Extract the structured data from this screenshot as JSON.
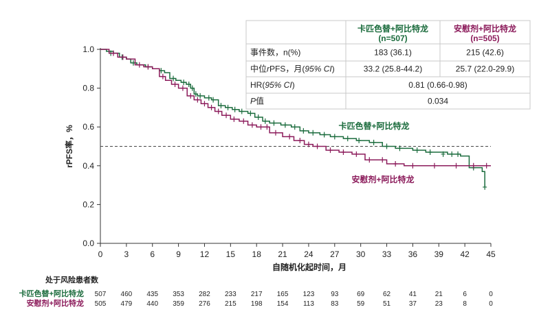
{
  "chart_data": {
    "type": "line",
    "subtype": "kaplan-meier",
    "xlabel": "自随机化起时间，月",
    "ylabel": "rPFS率，%",
    "xlim": [
      0,
      45
    ],
    "ylim": [
      0.0,
      1.0
    ],
    "xticks": [
      "0",
      "3",
      "6",
      "9",
      "12",
      "15",
      "18",
      "21",
      "24",
      "27",
      "30",
      "33",
      "36",
      "39",
      "42",
      "45"
    ],
    "yticks": [
      "0.0",
      "0.2",
      "0.4",
      "0.6",
      "0.8",
      "1.0"
    ],
    "reference_line": 0.5,
    "series": [
      {
        "name": "卡匹色替+阿比特龙",
        "label": "卡匹色替+阿比特龙",
        "color": "#1a6b3c",
        "x": [
          0,
          0.7,
          1.5,
          2.2,
          3.0,
          3.5,
          4.2,
          5.2,
          6.0,
          6.8,
          7.4,
          8.0,
          8.7,
          9.3,
          9.9,
          10.4,
          10.8,
          11.2,
          12.0,
          12.8,
          13.6,
          14.4,
          15.2,
          16.0,
          17.0,
          17.8,
          18.7,
          19.5,
          20.8,
          22.0,
          23.0,
          24.0,
          25.3,
          26.5,
          28.0,
          29.5,
          31.0,
          32.5,
          34.0,
          36.0,
          37.5,
          40.0,
          41.5,
          42.5,
          44.0,
          44.3
        ],
        "y": [
          1.0,
          0.99,
          0.98,
          0.96,
          0.95,
          0.93,
          0.92,
          0.91,
          0.9,
          0.89,
          0.88,
          0.85,
          0.84,
          0.83,
          0.82,
          0.8,
          0.77,
          0.76,
          0.75,
          0.74,
          0.71,
          0.7,
          0.69,
          0.68,
          0.67,
          0.65,
          0.63,
          0.62,
          0.61,
          0.6,
          0.58,
          0.57,
          0.56,
          0.55,
          0.54,
          0.53,
          0.52,
          0.5,
          0.49,
          0.48,
          0.47,
          0.46,
          0.45,
          0.39,
          0.37,
          0.29
        ]
      },
      {
        "name": "安慰剂+阿比特龙",
        "label": "安慰剂+阿比特龙",
        "color": "#8b1a5a",
        "x": [
          0,
          1.0,
          2.0,
          3.0,
          4.0,
          5.0,
          6.0,
          6.8,
          7.5,
          8.2,
          9.0,
          10.0,
          10.8,
          11.6,
          12.4,
          13.2,
          14.0,
          15.0,
          16.0,
          17.0,
          18.0,
          19.5,
          21.0,
          22.3,
          23.5,
          24.5,
          26.0,
          27.5,
          29.0,
          30.5,
          33.0,
          35.0,
          37.0,
          40.0,
          44.0,
          45.0
        ],
        "y": [
          1.0,
          0.98,
          0.96,
          0.95,
          0.92,
          0.91,
          0.9,
          0.86,
          0.84,
          0.82,
          0.8,
          0.76,
          0.74,
          0.72,
          0.7,
          0.68,
          0.66,
          0.64,
          0.63,
          0.61,
          0.6,
          0.57,
          0.55,
          0.53,
          0.51,
          0.5,
          0.48,
          0.47,
          0.46,
          0.43,
          0.41,
          0.4,
          0.4,
          0.4,
          0.4,
          0.4
        ]
      }
    ],
    "censor_marks": {
      "卡匹色替+阿比特龙": [
        [
          1.2,
          0.98
        ],
        [
          2.5,
          0.96
        ],
        [
          3.8,
          0.93
        ],
        [
          5.5,
          0.91
        ],
        [
          7.0,
          0.89
        ],
        [
          8.4,
          0.85
        ],
        [
          9.6,
          0.83
        ],
        [
          10.2,
          0.82
        ],
        [
          10.6,
          0.8
        ],
        [
          11.0,
          0.77
        ],
        [
          11.5,
          0.76
        ],
        [
          12.5,
          0.75
        ],
        [
          13.0,
          0.74
        ],
        [
          13.9,
          0.71
        ],
        [
          14.7,
          0.7
        ],
        [
          15.5,
          0.69
        ],
        [
          16.3,
          0.68
        ],
        [
          17.3,
          0.67
        ],
        [
          18.2,
          0.65
        ],
        [
          19.0,
          0.63
        ],
        [
          20.0,
          0.62
        ],
        [
          21.3,
          0.61
        ],
        [
          22.4,
          0.6
        ],
        [
          23.4,
          0.58
        ],
        [
          24.5,
          0.57
        ],
        [
          25.8,
          0.56
        ],
        [
          27.0,
          0.55
        ],
        [
          28.5,
          0.54
        ],
        [
          29.8,
          0.53
        ],
        [
          31.5,
          0.52
        ],
        [
          33.0,
          0.5
        ],
        [
          34.5,
          0.49
        ],
        [
          36.5,
          0.48
        ],
        [
          38.0,
          0.47
        ],
        [
          39.5,
          0.46
        ],
        [
          40.5,
          0.46
        ],
        [
          41.2,
          0.46
        ],
        [
          43.0,
          0.39
        ],
        [
          44.3,
          0.29
        ]
      ],
      "安慰剂+阿比特龙": [
        [
          1.5,
          0.98
        ],
        [
          2.6,
          0.96
        ],
        [
          4.5,
          0.92
        ],
        [
          5.5,
          0.91
        ],
        [
          7.2,
          0.86
        ],
        [
          8.6,
          0.82
        ],
        [
          9.5,
          0.8
        ],
        [
          10.4,
          0.76
        ],
        [
          11.2,
          0.74
        ],
        [
          12.0,
          0.72
        ],
        [
          12.8,
          0.7
        ],
        [
          13.6,
          0.68
        ],
        [
          14.5,
          0.66
        ],
        [
          15.4,
          0.64
        ],
        [
          16.5,
          0.63
        ],
        [
          17.5,
          0.61
        ],
        [
          18.5,
          0.6
        ],
        [
          19.2,
          0.6
        ],
        [
          20.2,
          0.57
        ],
        [
          21.8,
          0.55
        ],
        [
          23.0,
          0.53
        ],
        [
          24.0,
          0.51
        ],
        [
          25.0,
          0.5
        ],
        [
          26.5,
          0.48
        ],
        [
          28.0,
          0.47
        ],
        [
          29.5,
          0.46
        ],
        [
          31.0,
          0.43
        ],
        [
          32.5,
          0.43
        ],
        [
          34.0,
          0.41
        ],
        [
          36.0,
          0.4
        ],
        [
          38.5,
          0.4
        ],
        [
          41.0,
          0.4
        ],
        [
          43.0,
          0.4
        ],
        [
          44.5,
          0.4
        ]
      ]
    },
    "risk_table": {
      "title": "处于风险患者数",
      "times": [
        0,
        3,
        6,
        9,
        12,
        15,
        18,
        21,
        24,
        27,
        30,
        33,
        36,
        39,
        42,
        45
      ],
      "rows": [
        {
          "label": "卡匹色替+阿比特龙",
          "color": "#1a6b3c",
          "values": [
            "507",
            "460",
            "435",
            "353",
            "282",
            "233",
            "217",
            "165",
            "123",
            "93",
            "69",
            "62",
            "41",
            "21",
            "6",
            "0"
          ]
        },
        {
          "label": "安慰剂+阿比特龙",
          "color": "#8b1a5a",
          "values": [
            "505",
            "479",
            "440",
            "359",
            "276",
            "215",
            "198",
            "154",
            "113",
            "83",
            "59",
            "51",
            "37",
            "23",
            "8",
            "0"
          ]
        }
      ]
    },
    "summary_table": {
      "headers": [
        {
          "line1": "卡匹色替+阿比特龙",
          "line2": "(n=507)",
          "color": "#1a6b3c"
        },
        {
          "line1": "安慰剂+阿比特龙",
          "line2": "(n=505)",
          "color": "#8b1a5a"
        }
      ],
      "rows": [
        {
          "label": [
            {
              "t": "事件数，n(%)",
              "i": false
            }
          ],
          "cells": [
            "183 (36.1)",
            "215 (42.6)"
          ]
        },
        {
          "label": [
            {
              "t": "中位",
              "i": false
            },
            {
              "t": "r",
              "i": true
            },
            {
              "t": "PFS，月(",
              "i": false
            },
            {
              "t": "95% CI",
              "i": true
            },
            {
              "t": ")",
              "i": false
            }
          ],
          "cells": [
            "33.2 (25.8-44.2)",
            "25.7 (22.0-29.9)"
          ]
        },
        {
          "label": [
            {
              "t": "HR(",
              "i": false
            },
            {
              "t": "95% CI",
              "i": true
            },
            {
              "t": ")",
              "i": false
            }
          ],
          "cells": [
            "0.81 (0.66-0.98)"
          ]
        },
        {
          "label": [
            {
              "t": "P",
              "i": true
            },
            {
              "t": "值",
              "i": false
            }
          ],
          "cells": [
            "0.034"
          ]
        }
      ]
    }
  }
}
